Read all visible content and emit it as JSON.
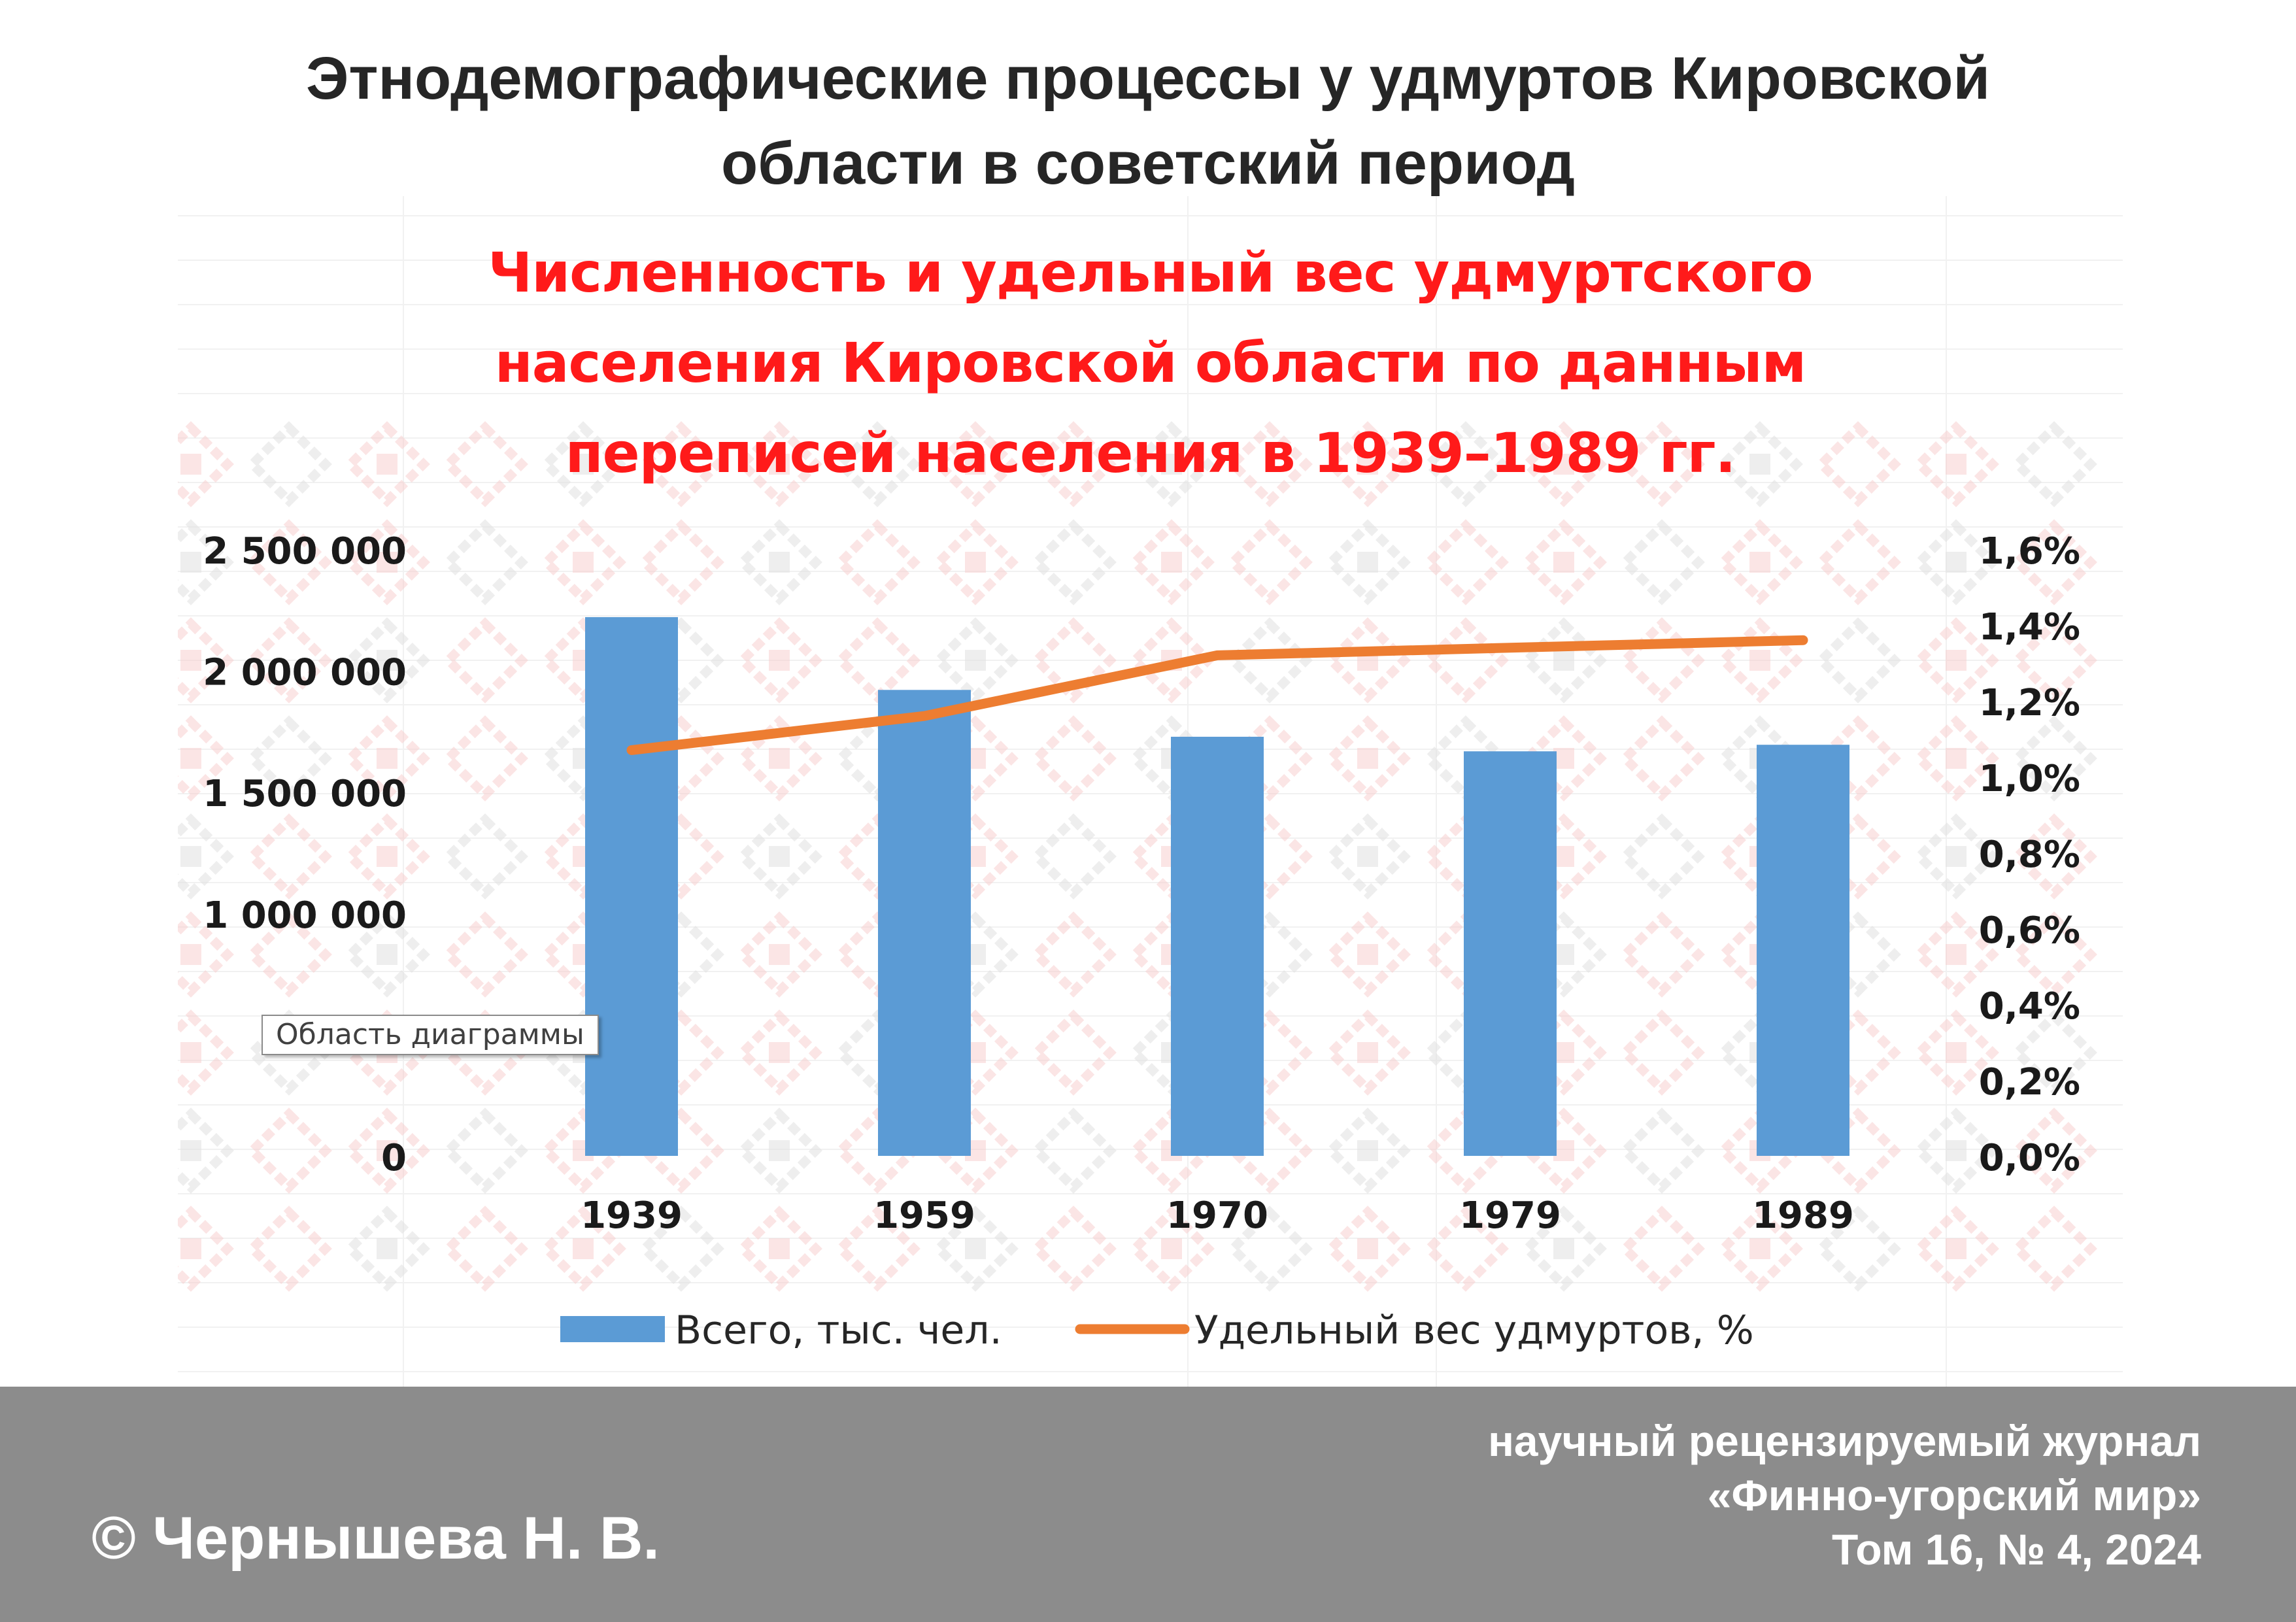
{
  "page_title": {
    "line1": "Этнодемографические процессы у удмуртов Кировской",
    "line2": "области в советский период"
  },
  "tooltip": "Область диаграммы",
  "footer": {
    "author": "© Чернышева Н. В.",
    "journal_line1": "научный рецензируемый журнал",
    "journal_line2": "«Финно-угорский мир»",
    "journal_line3": "Том 16, № 4, 2024"
  },
  "colors": {
    "bars": "#5b9bd5",
    "line": "#ed7d31",
    "title": "#ff1a1a",
    "footer_bg": "#8c8c8c",
    "ornament_red": "#f0a8a8",
    "ornament_grey": "#c8c8c8"
  },
  "chart_data": {
    "type": "bar",
    "title_lines": [
      "Численность и удельный вес удмуртского",
      "населения Кировской области по данным",
      "переписей населения в 1939–1989 гг."
    ],
    "categories": [
      "1939",
      "1959",
      "1970",
      "1979",
      "1989"
    ],
    "series": [
      {
        "name": "Всего, тыс. чел.",
        "type": "bar",
        "axis": "left",
        "values": [
          2220000,
          1920000,
          1727000,
          1667000,
          1694000
        ]
      },
      {
        "name": "Удельный вес удмуртов, %",
        "type": "line",
        "axis": "right",
        "values": [
          1.07,
          1.16,
          1.32,
          1.34,
          1.36
        ]
      }
    ],
    "y_left": {
      "min": 0,
      "max": 2500000,
      "ticks": [
        {
          "v": 0,
          "label": "0"
        },
        {
          "v": 500000,
          "label": ""
        },
        {
          "v": 1000000,
          "label": "1 000 000"
        },
        {
          "v": 1500000,
          "label": "1 500 000"
        },
        {
          "v": 2000000,
          "label": "2 000 000"
        },
        {
          "v": 2500000,
          "label": "2 500 000"
        }
      ]
    },
    "y_right": {
      "min": 0,
      "max": 1.6,
      "ticks": [
        {
          "v": 0.0,
          "label": "0,0%"
        },
        {
          "v": 0.2,
          "label": "0,2%"
        },
        {
          "v": 0.4,
          "label": "0,4%"
        },
        {
          "v": 0.6,
          "label": "0,6%"
        },
        {
          "v": 0.8,
          "label": "0,8%"
        },
        {
          "v": 1.0,
          "label": "1,0%"
        },
        {
          "v": 1.2,
          "label": "1,2%"
        },
        {
          "v": 1.4,
          "label": "1,4%"
        },
        {
          "v": 1.6,
          "label": "1,6%"
        }
      ]
    },
    "legend_position": "bottom",
    "grid": false
  }
}
